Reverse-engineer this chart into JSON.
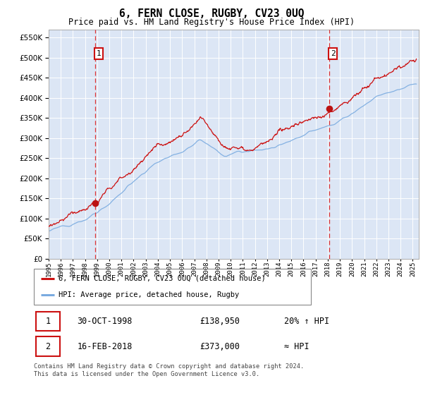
{
  "title": "6, FERN CLOSE, RUGBY, CV23 0UQ",
  "subtitle": "Price paid vs. HM Land Registry's House Price Index (HPI)",
  "bg_color": "#dce6f5",
  "red_line_label": "6, FERN CLOSE, RUGBY, CV23 0UQ (detached house)",
  "blue_line_label": "HPI: Average price, detached house, Rugby",
  "sale1_date": "30-OCT-1998",
  "sale1_price": "£138,950",
  "sale1_note": "20% ↑ HPI",
  "sale2_date": "16-FEB-2018",
  "sale2_price": "£373,000",
  "sale2_note": "≈ HPI",
  "footer": "Contains HM Land Registry data © Crown copyright and database right 2024.\nThis data is licensed under the Open Government Licence v3.0.",
  "ylim": [
    0,
    570000
  ],
  "yticks": [
    0,
    50000,
    100000,
    150000,
    200000,
    250000,
    300000,
    350000,
    400000,
    450000,
    500000,
    550000
  ],
  "sale1_x": 1998.83,
  "sale1_y": 138950,
  "sale2_x": 2018.12,
  "sale2_y": 373000,
  "xmin": 1995.0,
  "xmax": 2025.5
}
